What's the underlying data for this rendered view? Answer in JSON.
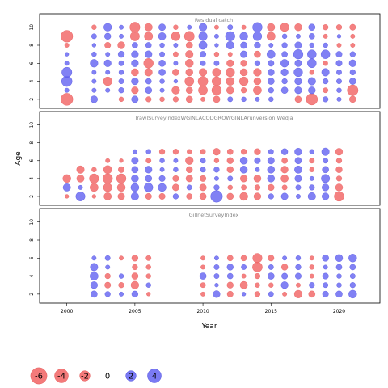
{
  "chart_data": {
    "type": "scatter",
    "subtype": "bubble",
    "xlabel": "Year",
    "ylabel": "Age",
    "xlim": [
      1998,
      2023
    ],
    "ylim": [
      1,
      11.5
    ],
    "x_ticks": [
      2000,
      2005,
      2010,
      2015,
      2020
    ],
    "y_ticks": [
      2,
      4,
      6,
      8,
      10
    ],
    "colors": {
      "negative": "#f26b6b",
      "positive": "#6b6bf2"
    },
    "legend": {
      "placement": "bottom-left",
      "entries": [
        {
          "label": "-6",
          "value": -6
        },
        {
          "label": "-4",
          "value": -4
        },
        {
          "label": "-2",
          "value": -2
        },
        {
          "label": "0",
          "value": 0
        },
        {
          "label": "2",
          "value": 2
        },
        {
          "label": "4",
          "value": 4
        }
      ]
    },
    "panels": [
      {
        "title": "Residual catch",
        "ages": [
          2,
          3,
          4,
          5,
          6,
          7,
          8,
          9,
          10
        ],
        "years": [
          2000,
          2001,
          2002,
          2003,
          2004,
          2005,
          2006,
          2007,
          2008,
          2009,
          2010,
          2011,
          2012,
          2013,
          2014,
          2015,
          2016,
          2017,
          2018,
          2019,
          2020,
          2021
        ],
        "residuals": [
          [
            -4.6,
            0,
            1.2,
            0,
            -0.4,
            1.1,
            -0.6,
            -0.4,
            -0.6,
            -1.0,
            -0.3,
            -1.1,
            0.5,
            0.4,
            0.3,
            0.4,
            0,
            -1.0,
            -4.0,
            0.6,
            0.3,
            -1.0
          ],
          [
            0.3,
            0,
            0.3,
            0.3,
            0.6,
            -1.2,
            1.0,
            0.3,
            -1.6,
            -1.0,
            -2.3,
            -2.6,
            -1.3,
            -0.6,
            -1.8,
            0.6,
            1.0,
            1.2,
            1.2,
            -0.5,
            0.4,
            -3.5
          ],
          [
            3.3,
            0,
            0.3,
            -2.1,
            0.5,
            1.2,
            0.7,
            0.4,
            0.2,
            -2.3,
            -2.8,
            -2.4,
            -1.8,
            -2.1,
            -1.3,
            1.0,
            0.6,
            1.2,
            1.5,
            0.6,
            0.5,
            1.0
          ],
          [
            3.0,
            0,
            0.3,
            0.3,
            0.4,
            -1.3,
            -1.5,
            1.0,
            -1.0,
            -1.3,
            -1.5,
            -1.9,
            -2.2,
            -1.3,
            -1.6,
            1.0,
            1.2,
            2.1,
            -0.4,
            1.5,
            0.5,
            0.6
          ],
          [
            0.3,
            0,
            1.6,
            1.2,
            0.5,
            1.2,
            -2.7,
            1.0,
            0.3,
            -1.7,
            0.5,
            0.5,
            -1.2,
            -0.9,
            0.6,
            0.8,
            1.6,
            1.1,
            2.2,
            -0.4,
            0.8,
            1.2
          ],
          [
            0.2,
            0,
            0.4,
            0.3,
            0.9,
            1.2,
            1.2,
            0.5,
            -0.5,
            -1.5,
            0.8,
            -0.4,
            -0.3,
            1.1,
            -1.0,
            1.8,
            0.7,
            2.6,
            2.2,
            2.2,
            0.8,
            0.6
          ],
          [
            -0.3,
            0,
            0.2,
            -0.8,
            -1.3,
            0.7,
            0.7,
            0.4,
            0.3,
            -1.0,
            1.8,
            0.2,
            1.6,
            1.0,
            0.9,
            0.3,
            0.6,
            1.1,
            0.4,
            0.4,
            -0.3,
            -0.3
          ],
          [
            -4.4,
            0,
            0.5,
            0.9,
            0.3,
            -2.4,
            -1.9,
            1.4,
            -2.2,
            -2.9,
            2.0,
            0.3,
            2.6,
            1.7,
            2.1,
            -1.9,
            0.4,
            0.3,
            0.7,
            -0.3,
            0.2,
            -0.3
          ],
          [
            0,
            0,
            -0.4,
            1.6,
            0.3,
            -3.0,
            -1.5,
            1.1,
            -0.4,
            0.3,
            1.6,
            -0.3,
            0.5,
            -0.3,
            2.6,
            -1.5,
            -2.0,
            -1.3,
            1.0,
            -0.6,
            -0.6,
            -0.8
          ]
        ]
      },
      {
        "title": "TrawlSurveyIndexWGINLACODGROWGINLArunversion:Wedja",
        "ages": [
          2,
          3,
          4,
          5,
          6,
          7
        ],
        "years": [
          2000,
          2001,
          2002,
          2003,
          2004,
          2005,
          2006,
          2007,
          2008,
          2009,
          2010,
          2011,
          2012,
          2013,
          2014,
          2015,
          2016,
          2017,
          2018,
          2019,
          2020
        ],
        "residuals": [
          [
            -0.2,
            2.4,
            -0.2,
            -1.4,
            -1.1,
            1.5,
            -0.8,
            -0.8,
            0.6,
            -0.7,
            -1.0,
            4.3,
            -1.0,
            -1.7,
            -1.2,
            0.6,
            1.1,
            0.3,
            1.5,
            1.2,
            -2.7
          ],
          [
            1.4,
            0.3,
            -1.8,
            -2.0,
            -1.7,
            1.7,
            2.1,
            1.7,
            -1.1,
            0.5,
            -1.1,
            0.6,
            -0.4,
            -0.5,
            -0.6,
            -0.9,
            -0.5,
            0.5,
            0.6,
            1.2,
            -1.3
          ],
          [
            -1.7,
            -1.4,
            -2.5,
            -2.7,
            -2.6,
            1.3,
            1.0,
            0.8,
            -0.8,
            -1.1,
            -0.8,
            0.3,
            0.5,
            -1.2,
            -1.3,
            1.3,
            -1.4,
            1.1,
            0.3,
            1.9,
            -0.6
          ],
          [
            0,
            -1.5,
            -0.4,
            -1.8,
            -0.8,
            1.0,
            1.2,
            0.3,
            0.4,
            -0.9,
            0.5,
            0.6,
            -0.9,
            1.3,
            0.3,
            1.3,
            -1.2,
            1.4,
            -0.4,
            1.0,
            -0.9
          ],
          [
            0,
            0,
            0,
            -0.3,
            -0.2,
            1.1,
            -0.5,
            0.4,
            0.3,
            -1.6,
            0.5,
            -0.4,
            -0.9,
            1.3,
            0.8,
            1.1,
            -0.7,
            1.0,
            -0.5,
            0.5,
            -0.6
          ],
          [
            0,
            0,
            0,
            0,
            0,
            0.3,
            0.4,
            -0.6,
            -0.6,
            -0.4,
            -0.5,
            -1.2,
            -0.7,
            -0.6,
            -0.9,
            0.5,
            0.9,
            1.3,
            0.4,
            1.5,
            -1.2
          ]
        ]
      },
      {
        "title": "GillnetSurveyIndex",
        "ages": [
          2,
          3,
          4,
          5,
          6
        ],
        "years": [
          2002,
          2003,
          2004,
          2005,
          2006,
          2010,
          2011,
          2012,
          2013,
          2014,
          2015,
          2016,
          2017,
          2018,
          2019,
          2020,
          2021
        ],
        "residuals": [
          [
            1.0,
            0.6,
            0.3,
            0.9,
            -0.2,
            -0.3,
            1.2,
            -0.8,
            0.2,
            -0.6,
            0.5,
            -0.3,
            -1.6,
            -1.0,
            0.8,
            1.0,
            1.7
          ],
          [
            1.2,
            -0.8,
            -0.6,
            -1.6,
            0.4,
            -0.5,
            0.2,
            -0.9,
            -1.4,
            -0.4,
            -0.4,
            1.2,
            -0.3,
            0.6,
            0.5,
            0.4,
            0.6
          ],
          [
            1.8,
            -0.6,
            0.4,
            -1.0,
            -0.4,
            1.0,
            0.5,
            0.7,
            -0.3,
            -0.6,
            1.0,
            0.8,
            0.8,
            -0.3,
            0.8,
            0.4,
            0.5
          ],
          [
            1.5,
            0.3,
            0,
            -0.6,
            -0.4,
            -0.3,
            0.5,
            0.9,
            0.5,
            -2.8,
            0.5,
            -0.9,
            0.6,
            -0.4,
            0.3,
            0.7,
            0.7
          ],
          [
            0.3,
            0.5,
            -0.3,
            -0.9,
            -0.5,
            -0.3,
            0.3,
            -0.7,
            -0.7,
            -2.5,
            -0.8,
            0.3,
            0.4,
            -0.3,
            1.0,
            1.3,
            1.7
          ]
        ]
      }
    ]
  }
}
